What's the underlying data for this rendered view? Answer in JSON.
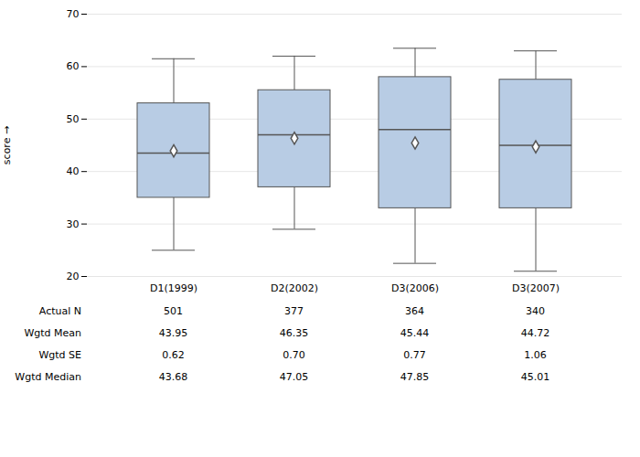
{
  "chart_data": {
    "type": "box",
    "ylabel": "score",
    "categories": [
      "D1(1999)",
      "D2(2002)",
      "D3(2006)",
      "D3(2007)"
    ],
    "boxes": [
      {
        "q1": 35.0,
        "median": 43.5,
        "q3": 53.0,
        "whislo": 25.0,
        "whishi": 61.5,
        "mean": 43.95
      },
      {
        "q1": 37.0,
        "median": 47.0,
        "q3": 55.5,
        "whislo": 29.0,
        "whishi": 62.0,
        "mean": 46.35
      },
      {
        "q1": 33.0,
        "median": 48.0,
        "q3": 58.0,
        "whislo": 22.5,
        "whishi": 63.5,
        "mean": 45.44
      },
      {
        "q1": 33.0,
        "median": 45.0,
        "q3": 57.5,
        "whislo": 21.0,
        "whishi": 63.0,
        "mean": 44.72
      }
    ],
    "color": "#b8cce4",
    "marker": "diamond",
    "ylim": [
      20,
      70
    ],
    "yticks": [
      20,
      30,
      40,
      50,
      60,
      70
    ],
    "grid": true,
    "table_labels": [
      "Actual N",
      "Wgtd Mean",
      "Wgtd SE",
      "Wgtd Median"
    ],
    "table_data": [
      [
        "501",
        "377",
        "364",
        "340"
      ],
      [
        "43.95",
        "46.35",
        "45.44",
        "44.72"
      ],
      [
        "0.62",
        "0.70",
        "0.77",
        "1.06"
      ],
      [
        "43.68",
        "47.05",
        "47.85",
        "45.01"
      ]
    ]
  }
}
